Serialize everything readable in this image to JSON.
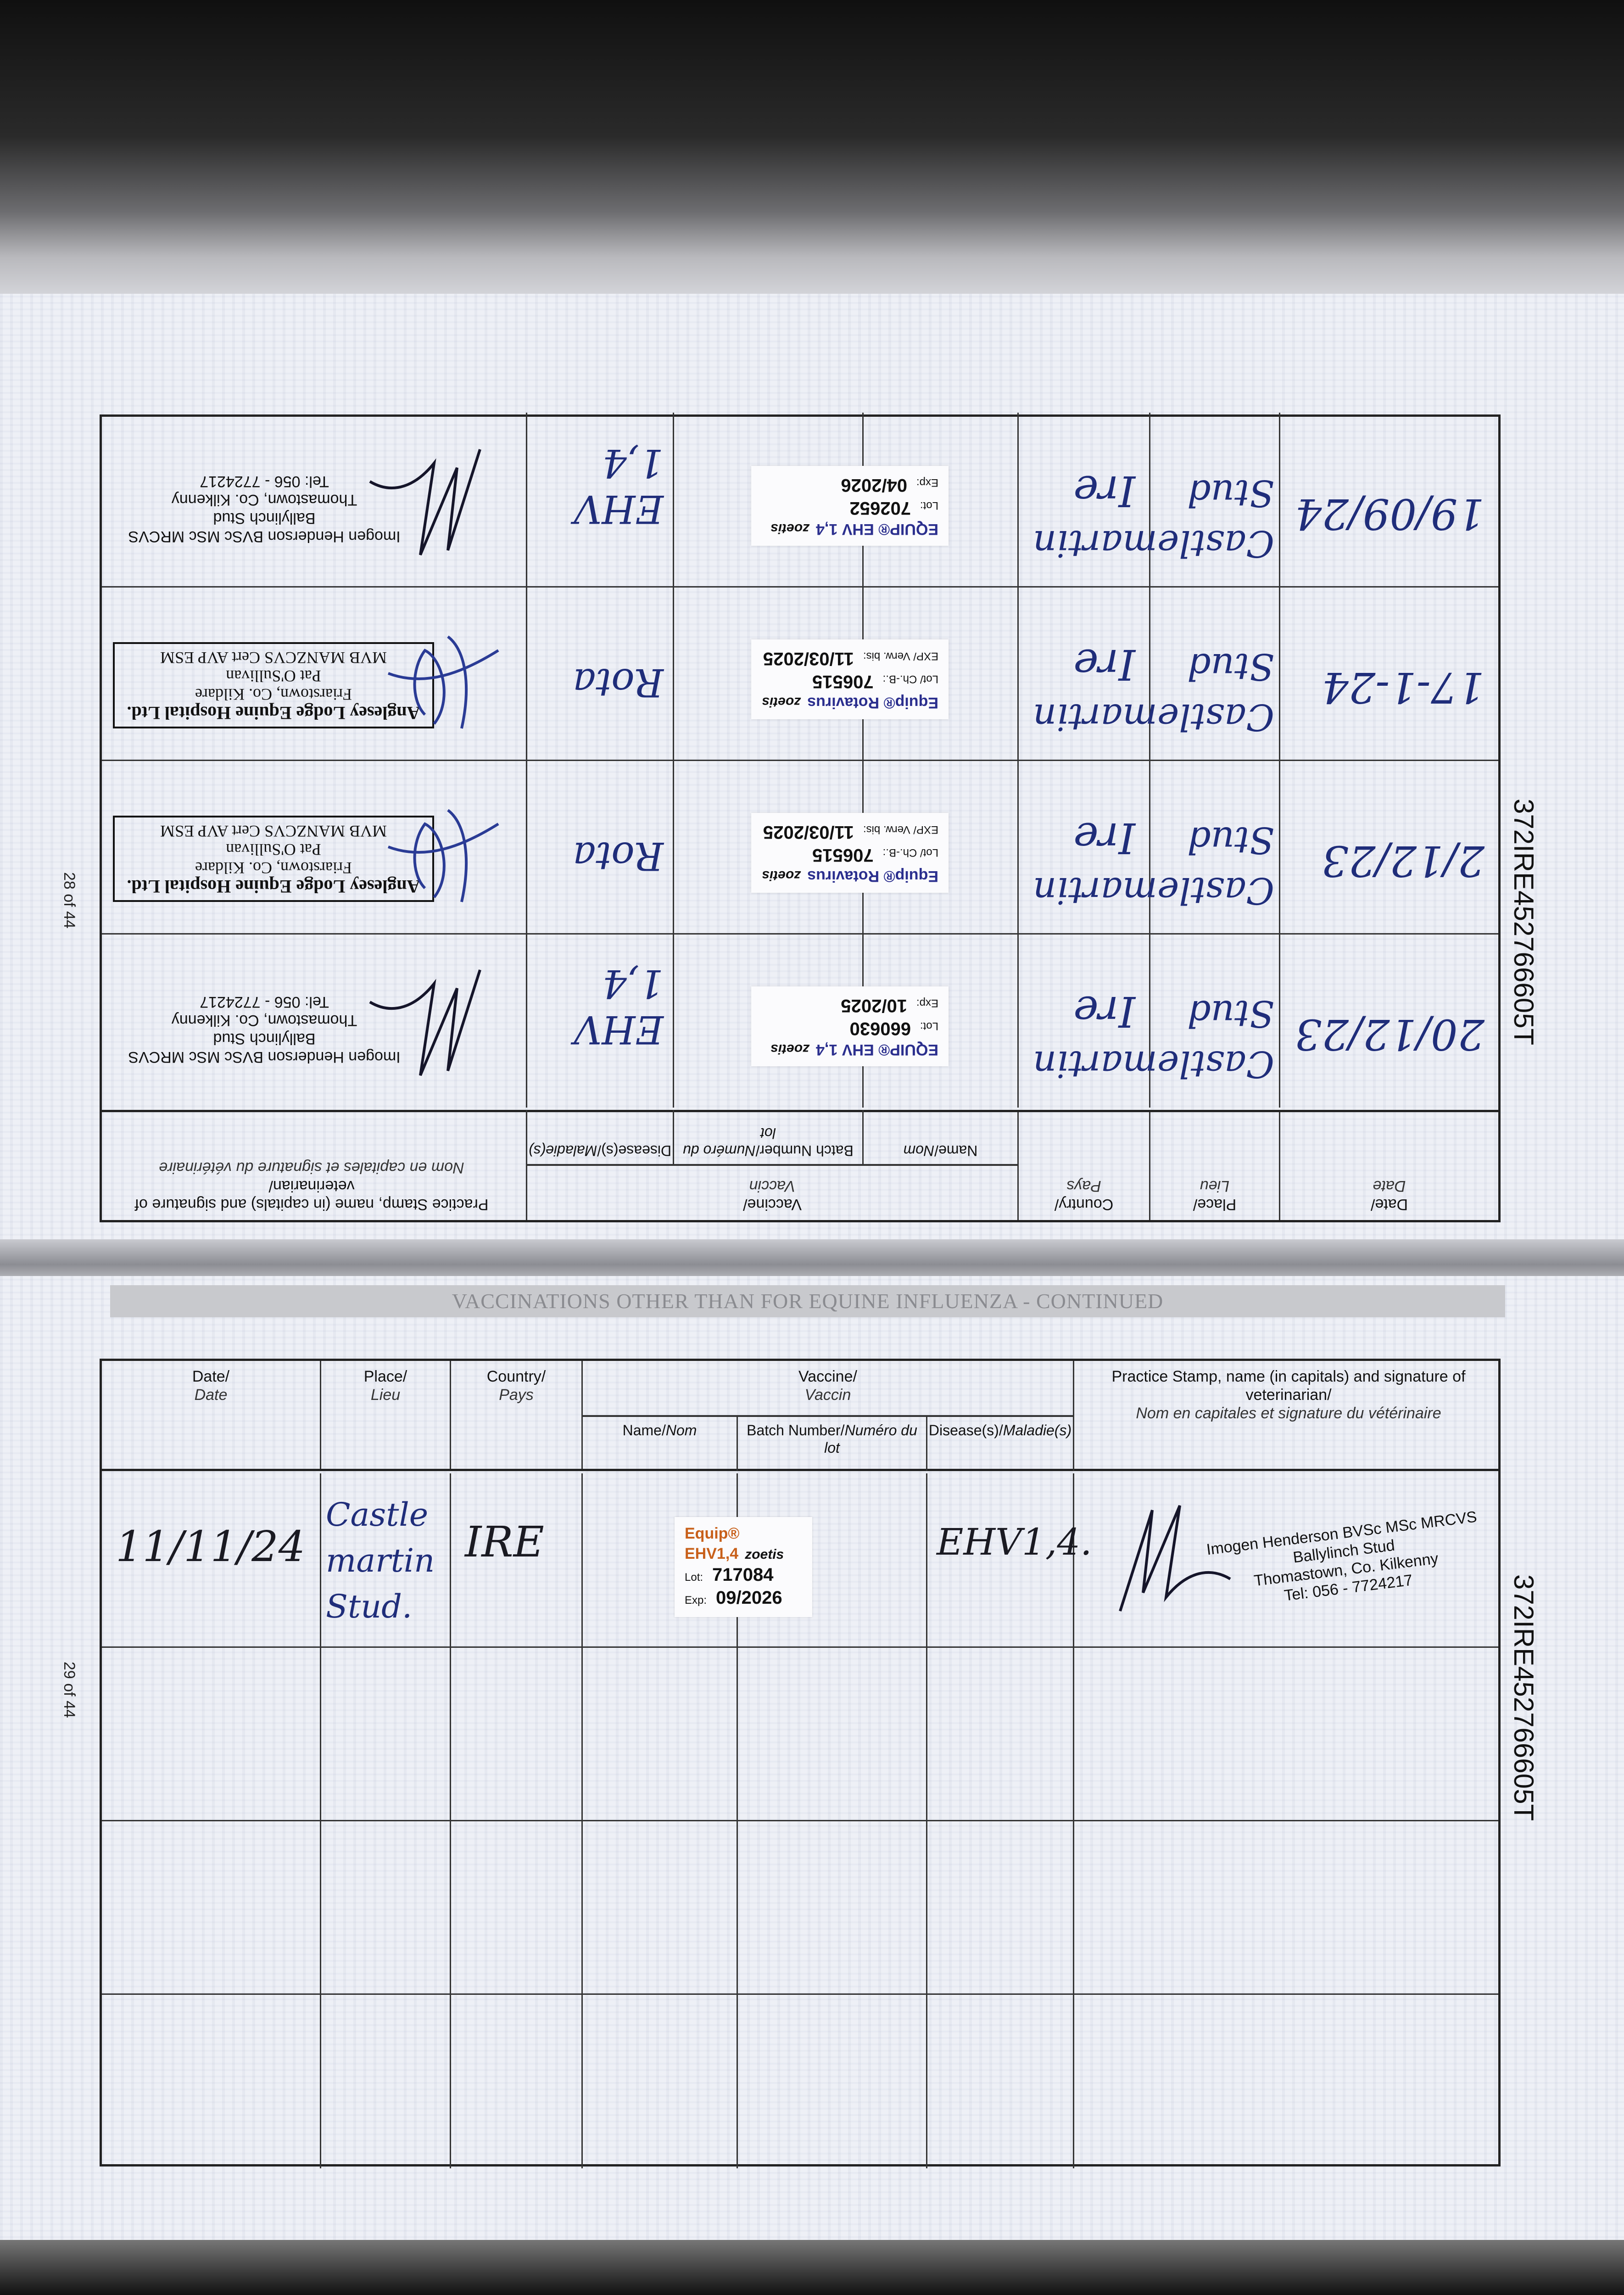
{
  "heading": "VACCINATIONS OTHER THAN FOR EQUINE INFLUENZA - CONTINUED",
  "headers": {
    "date": "Date/",
    "date_fr": "Date",
    "place": "Place/",
    "place_fr": "Lieu",
    "country": "Country/",
    "country_fr": "Pays",
    "vaccine": "Vaccine/",
    "vaccine_fr": "Vaccin",
    "name": "Name/",
    "name_fr": "Nom",
    "batch": "Batch Number/",
    "batch_fr": "Numéro du lot",
    "disease": "Disease(s)/",
    "disease_fr": "Maladie(s)",
    "stamp": "Practice Stamp, name (in capitals) and signature of veterinarian/",
    "stamp_fr": "Nom en capitales et signature du vétérinaire"
  },
  "ink_color": "#1f2d7a",
  "pages": [
    {
      "page_number": "28 of 44",
      "passport_id": "372IRE452766605T",
      "orientation": "upside-down",
      "rows": [
        {
          "date": "20/12/23",
          "place": "Castlemartin Stud",
          "country": "Ire",
          "sticker": {
            "brand": "EQUIP® EHV 1,4",
            "maker": "zoetis",
            "lot_label": "Lot:",
            "lot": "660630",
            "exp_label": "Exp:",
            "exp": "10/2025"
          },
          "disease": "EHV 1,4",
          "stamp": {
            "type": "text",
            "lines": [
              "Imogen Henderson BVSc MSc MRCVS",
              "Ballylinch Stud",
              "Thomastown, Co. Kilkenny",
              "Tel: 056 - 7724217"
            ]
          }
        },
        {
          "date": "2/12/23",
          "place": "Castlemartin Stud",
          "country": "Ire",
          "sticker": {
            "brand": "Equip® Rotavirus",
            "maker": "zoetis",
            "lot_label": "Lot/ Ch.-B.:",
            "lot": "706515",
            "exp_label": "EXP/ Verw. bis:",
            "exp": "11/03/2025"
          },
          "disease": "Rota",
          "stamp": {
            "type": "box",
            "lines": [
              "Anglesey Lodge Equine Hospital Ltd.",
              "Friarstown, Co. Kildare",
              "Pat O'Sullivan",
              "MVB MANZCVS Cert AVP ESM"
            ]
          }
        },
        {
          "date": "17-1-24",
          "place": "Castlemartin Stud",
          "country": "Ire",
          "sticker": {
            "brand": "Equip® Rotavirus",
            "maker": "zoetis",
            "lot_label": "Lot/ Ch.-B.:",
            "lot": "706515",
            "exp_label": "EXP/ Verw. bis:",
            "exp": "11/03/2025"
          },
          "disease": "Rota",
          "stamp": {
            "type": "box",
            "lines": [
              "Anglesey Lodge Equine Hospital Ltd.",
              "Friarstown, Co. Kildare",
              "Pat O'Sullivan",
              "MVB MANZCVS Cert AVP ESM"
            ]
          }
        },
        {
          "date": "19/09/24",
          "place": "Castlemartin Stud",
          "country": "Ire",
          "sticker": {
            "brand": "EQUIP® EHV 1,4",
            "maker": "zoetis",
            "lot_label": "Lot:",
            "lot": "702652",
            "exp_label": "Exp:",
            "exp": "04/2026"
          },
          "disease": "EHV 1,4",
          "stamp": {
            "type": "text",
            "lines": [
              "Imogen Henderson BVSc MSc MRCVS",
              "Ballylinch Stud",
              "Thomastown, Co. Kilkenny",
              "Tel: 056 - 7724217"
            ]
          }
        }
      ]
    },
    {
      "page_number": "29 of 44",
      "passport_id": "372IRE452766605T",
      "orientation": "upright",
      "rows": [
        {
          "date": "11/11/24",
          "place": "Castle martin Stud.",
          "country": "IRE",
          "sticker": {
            "brand": "Equip® EHV1,4",
            "maker": "zoetis",
            "lot_label": "Lot:",
            "lot": "717084",
            "exp_label": "Exp:",
            "exp": "09/2026"
          },
          "disease": "EHV1,4.",
          "stamp": {
            "type": "text",
            "lines": [
              "Imogen Henderson BVSc MSc MRCVS",
              "Ballylinch Stud",
              "Thomastown, Co. Kilkenny",
              "Tel: 056 - 7724217"
            ]
          }
        },
        {},
        {},
        {}
      ]
    }
  ]
}
